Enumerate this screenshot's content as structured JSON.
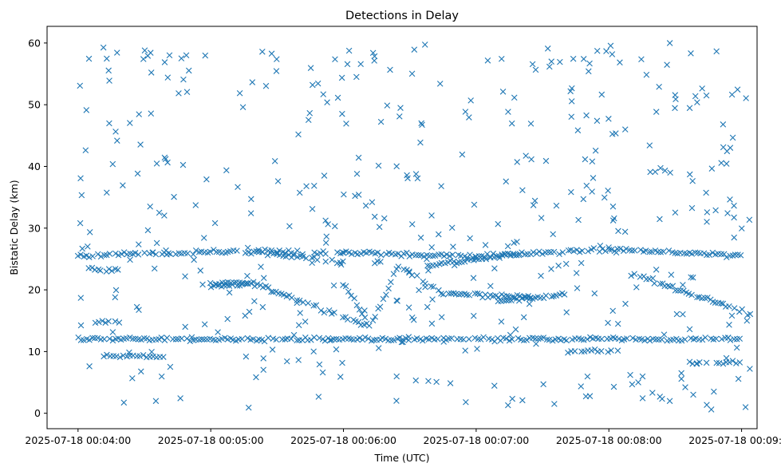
{
  "chart_data": {
    "type": "scatter",
    "title": "Detections in Delay",
    "xlabel": "Time (UTC)",
    "ylabel": "Bistatic Delay (km)",
    "marker": "x",
    "color": "#1f77b4",
    "grid": false,
    "legend": "none",
    "x_unit": "time of day (UTC), 2025-07-18",
    "xlim": [
      "00:03:46",
      "00:09:07"
    ],
    "ylim": [
      -2.5,
      62.7
    ],
    "x_ticks": [
      {
        "label": "2025-07-18 00:04:00",
        "value": "00:04:00"
      },
      {
        "label": "2025-07-18 00:05:00",
        "value": "00:05:00"
      },
      {
        "label": "2025-07-18 00:06:00",
        "value": "00:06:00"
      },
      {
        "label": "2025-07-18 00:07:00",
        "value": "00:07:00"
      },
      {
        "label": "2025-07-18 00:08:00",
        "value": "00:08:00"
      },
      {
        "label": "2025-07-18 00:09:00",
        "value": "00:09:00"
      }
    ],
    "y_ticks": [
      0,
      10,
      20,
      30,
      40,
      50,
      60
    ],
    "tracks": [
      {
        "times": [
          "00:04:00",
          "00:09:00"
        ],
        "delays": [
          12.0,
          12.0
        ],
        "spacing_s": 1.3,
        "jitter_km": 0.25
      },
      {
        "times": [
          "00:04:00",
          "00:05:00",
          "00:06:00",
          "00:07:00",
          "00:08:00",
          "00:09:00"
        ],
        "delays": [
          25.5,
          26.2,
          26.0,
          25.4,
          26.6,
          25.5
        ],
        "spacing_s": 1.3,
        "jitter_km": 0.3
      },
      {
        "times": [
          "00:05:00",
          "00:05:20",
          "00:06:12",
          "00:06:25",
          "00:06:45",
          "00:07:25"
        ],
        "delays": [
          20.5,
          21.0,
          14.0,
          23.8,
          19.4,
          18.8
        ],
        "spacing_s": 1.2,
        "jitter_km": 0.3
      },
      {
        "times": [
          "00:05:22",
          "00:05:30",
          "00:06:00"
        ],
        "delays": [
          26.3,
          25.8,
          24.5
        ],
        "spacing_s": 1.3,
        "jitter_km": 0.3
      },
      {
        "times": [
          "00:06:38",
          "00:07:20"
        ],
        "delays": [
          24.0,
          25.8
        ],
        "spacing_s": 1.3,
        "jitter_km": 0.3
      },
      {
        "times": [
          "00:06:00",
          "00:06:12"
        ],
        "delays": [
          21.0,
          14.0
        ],
        "spacing_s": 1.2,
        "jitter_km": 0.3
      },
      {
        "times": [
          "00:07:10",
          "00:07:40"
        ],
        "delays": [
          18.2,
          19.2
        ],
        "spacing_s": 1.2,
        "jitter_km": 0.3
      },
      {
        "times": [
          "00:08:23",
          "00:09:05"
        ],
        "delays": [
          21.0,
          16.0
        ],
        "spacing_s": 1.2,
        "jitter_km": 0.3
      },
      {
        "times": [
          "00:04:05",
          "00:04:20"
        ],
        "delays": [
          23.5,
          23.0
        ],
        "spacing_s": 1.3,
        "jitter_km": 0.3
      },
      {
        "times": [
          "00:04:10",
          "00:04:40"
        ],
        "delays": [
          9.2,
          9.2
        ],
        "spacing_s": 1.5,
        "jitter_km": 0.2
      },
      {
        "times": [
          "00:04:08",
          "00:04:20"
        ],
        "delays": [
          14.7,
          14.8
        ],
        "spacing_s": 1.5,
        "jitter_km": 0.2
      },
      {
        "times": [
          "00:05:00",
          "00:05:18"
        ],
        "delays": [
          21.0,
          21.2
        ],
        "spacing_s": 1.3,
        "jitter_km": 0.2
      },
      {
        "times": [
          "00:06:13",
          "00:06:18"
        ],
        "delays": [
          24.5,
          24.6
        ],
        "spacing_s": 1.3,
        "jitter_km": 0.2
      },
      {
        "times": [
          "00:07:40",
          "00:08:05"
        ],
        "delays": [
          10.0,
          10.2
        ],
        "spacing_s": 1.5,
        "jitter_km": 0.3
      },
      {
        "times": [
          "00:08:10",
          "00:08:22"
        ],
        "delays": [
          22.5,
          21.3
        ],
        "spacing_s": 1.4,
        "jitter_km": 0.3
      },
      {
        "times": [
          "00:08:35",
          "00:09:02"
        ],
        "delays": [
          8.2,
          8.2
        ],
        "spacing_s": 1.5,
        "jitter_km": 0.2
      }
    ],
    "clutter": {
      "count": 430,
      "times": [
        "00:04:00",
        "00:09:05"
      ],
      "delays": [
        0.5,
        60.0
      ]
    }
  }
}
